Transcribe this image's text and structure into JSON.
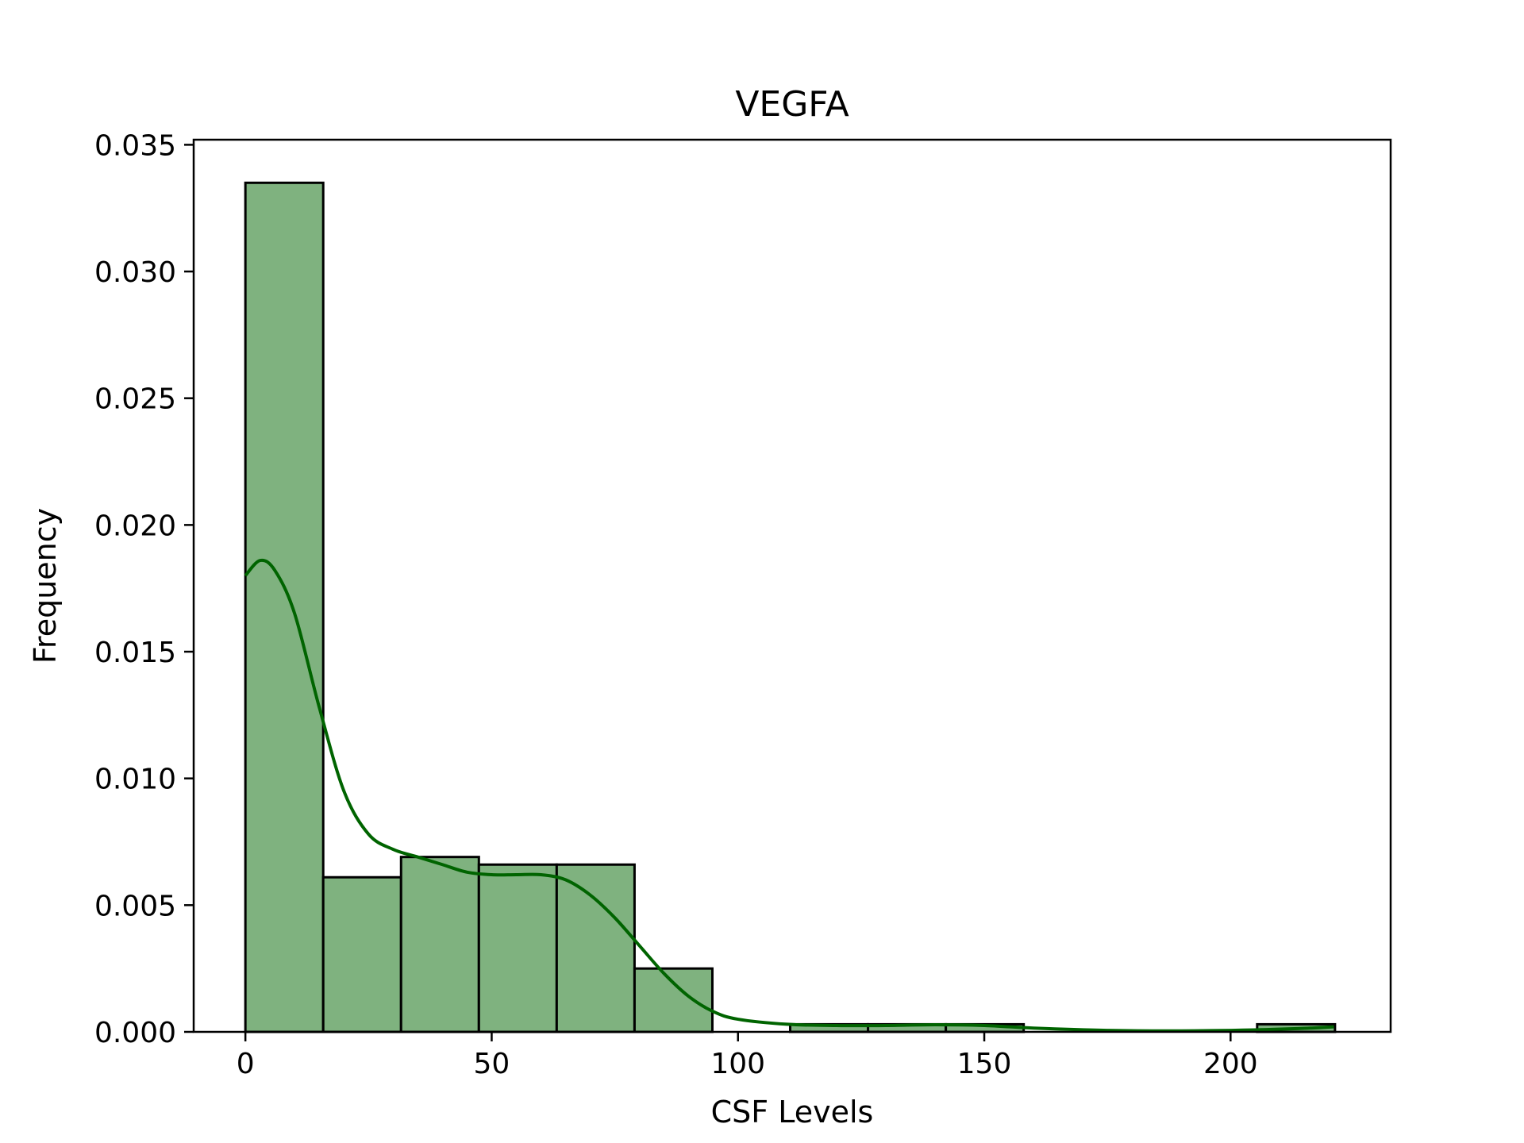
{
  "chart_data": {
    "type": "bar",
    "title": "VEGFA",
    "xlabel": "CSF Levels",
    "ylabel": "Frequency",
    "xlim": [
      -10.5,
      232.5
    ],
    "ylim": [
      0,
      0.0352
    ],
    "xticks": [
      0,
      50,
      100,
      150,
      200
    ],
    "xtick_labels": [
      "0",
      "50",
      "100",
      "150",
      "200"
    ],
    "yticks": [
      0.0,
      0.005,
      0.01,
      0.015,
      0.02,
      0.025,
      0.03,
      0.035
    ],
    "ytick_labels": [
      "0.000",
      "0.005",
      "0.010",
      "0.015",
      "0.020",
      "0.025",
      "0.030",
      "0.035"
    ],
    "bins": [
      {
        "x0": 0.0,
        "x1": 15.8,
        "value": 0.0335
      },
      {
        "x0": 15.8,
        "x1": 31.6,
        "value": 0.0061
      },
      {
        "x0": 31.6,
        "x1": 47.4,
        "value": 0.0069
      },
      {
        "x0": 47.4,
        "x1": 63.2,
        "value": 0.0066
      },
      {
        "x0": 63.2,
        "x1": 79.0,
        "value": 0.0066
      },
      {
        "x0": 79.0,
        "x1": 94.8,
        "value": 0.0025
      },
      {
        "x0": 94.8,
        "x1": 110.6,
        "value": 0.0
      },
      {
        "x0": 110.6,
        "x1": 126.4,
        "value": 0.0003
      },
      {
        "x0": 126.4,
        "x1": 142.2,
        "value": 0.0003
      },
      {
        "x0": 142.2,
        "x1": 158.0,
        "value": 0.0003
      },
      {
        "x0": 158.0,
        "x1": 173.8,
        "value": 0.0
      },
      {
        "x0": 173.8,
        "x1": 189.6,
        "value": 0.0
      },
      {
        "x0": 189.6,
        "x1": 205.4,
        "value": 0.0
      },
      {
        "x0": 205.4,
        "x1": 221.2,
        "value": 0.0003
      }
    ],
    "kde": {
      "x": [
        0,
        3,
        6,
        10,
        15,
        20,
        25,
        30,
        35,
        40,
        45,
        50,
        55,
        60,
        65,
        70,
        75,
        80,
        85,
        90,
        95,
        100,
        110,
        120,
        130,
        140,
        150,
        160,
        175,
        190,
        205,
        215,
        221
      ],
      "y": [
        0.018,
        0.0186,
        0.0182,
        0.0165,
        0.0128,
        0.0095,
        0.0078,
        0.0072,
        0.0069,
        0.0066,
        0.0063,
        0.0062,
        0.0062,
        0.0062,
        0.006,
        0.0054,
        0.0045,
        0.0034,
        0.0023,
        0.0014,
        0.0008,
        0.0005,
        0.0003,
        0.00025,
        0.00025,
        0.00028,
        0.00025,
        0.00015,
        6e-05,
        4e-05,
        8e-05,
        0.00014,
        0.0002
      ]
    },
    "colors": {
      "bar_fill": "#7fb27f",
      "bar_edge": "#000000",
      "kde_line": "#006400",
      "axes": "#000000"
    },
    "grid": false,
    "legend": "none"
  }
}
